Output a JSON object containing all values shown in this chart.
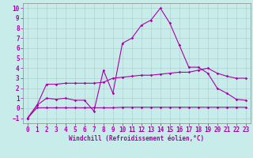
{
  "title": "",
  "xlabel": "Windchill (Refroidissement éolien,°C)",
  "bg_color": "#c8ecea",
  "grid_color": "#aacccc",
  "line_color": "#aa00aa",
  "spine_color": "#888888",
  "xlim": [
    -0.5,
    23.5
  ],
  "ylim": [
    -1.5,
    10.5
  ],
  "xticks": [
    0,
    1,
    2,
    3,
    4,
    5,
    6,
    7,
    8,
    9,
    10,
    11,
    12,
    13,
    14,
    15,
    16,
    17,
    18,
    19,
    20,
    21,
    22,
    23
  ],
  "yticks": [
    -1,
    0,
    1,
    2,
    3,
    4,
    5,
    6,
    7,
    8,
    9,
    10
  ],
  "series1_x": [
    0,
    1,
    2,
    3,
    4,
    5,
    6,
    7,
    8,
    9,
    10,
    11,
    12,
    13,
    14,
    15,
    16,
    17,
    18,
    19,
    20,
    21,
    22,
    23
  ],
  "series1_y": [
    -1.0,
    0.3,
    1.0,
    0.9,
    1.0,
    0.8,
    0.8,
    -0.3,
    3.8,
    1.5,
    6.5,
    7.0,
    8.3,
    8.8,
    10.0,
    8.5,
    6.3,
    4.1,
    4.1,
    3.5,
    2.0,
    1.5,
    0.9,
    0.8
  ],
  "series2_x": [
    0,
    1,
    2,
    3,
    4,
    5,
    6,
    7,
    8,
    9,
    10,
    11,
    12,
    13,
    14,
    15,
    16,
    17,
    18,
    19,
    20,
    21,
    22,
    23
  ],
  "series2_y": [
    -1.0,
    0.3,
    2.4,
    2.4,
    2.5,
    2.5,
    2.5,
    2.5,
    2.6,
    3.0,
    3.1,
    3.2,
    3.3,
    3.3,
    3.4,
    3.5,
    3.6,
    3.6,
    3.8,
    4.0,
    3.5,
    3.2,
    3.0,
    3.0
  ],
  "series3_x": [
    0,
    1,
    2,
    3,
    4,
    5,
    6,
    7,
    8,
    9,
    10,
    11,
    12,
    13,
    14,
    15,
    16,
    17,
    18,
    19,
    20,
    21,
    22,
    23
  ],
  "series3_y": [
    -1.0,
    0.05,
    0.05,
    0.05,
    0.05,
    0.05,
    0.05,
    0.05,
    0.05,
    0.05,
    0.1,
    0.1,
    0.1,
    0.1,
    0.1,
    0.1,
    0.1,
    0.1,
    0.1,
    0.1,
    0.1,
    0.1,
    0.1,
    0.1
  ],
  "tick_fontsize": 5.5,
  "xlabel_fontsize": 5.5,
  "lw": 0.8,
  "ms": 1.8
}
